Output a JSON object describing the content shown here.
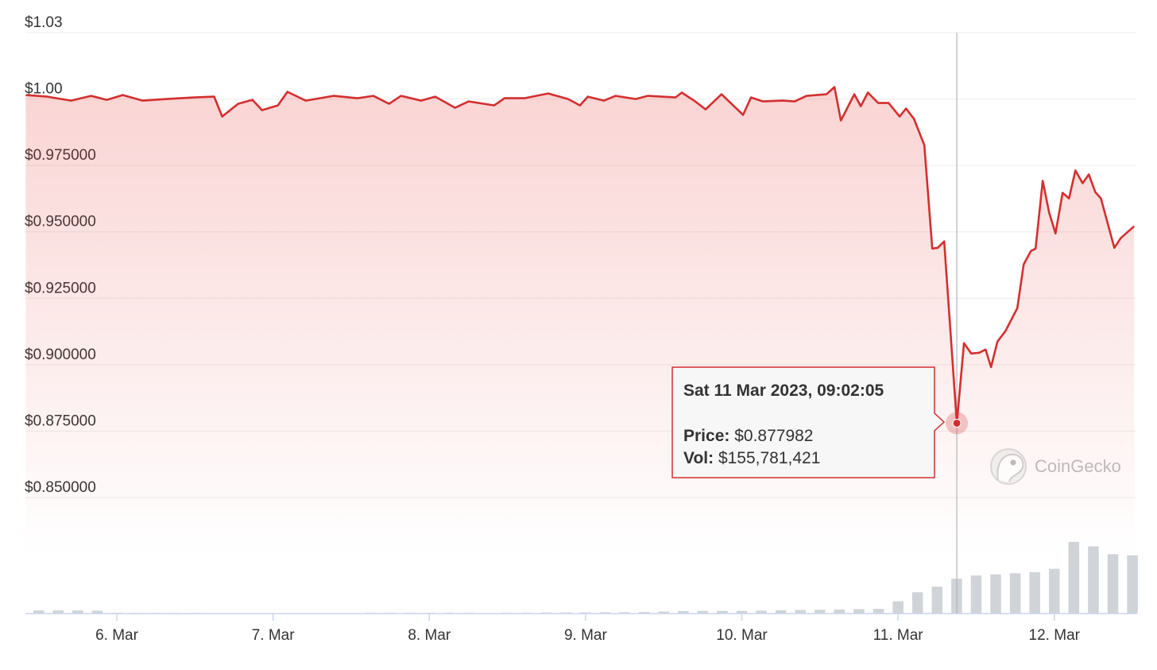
{
  "chart_data": {
    "type": "line",
    "x": [
      5.417,
      5.555,
      5.707,
      5.835,
      5.936,
      6.038,
      6.165,
      6.318,
      6.496,
      6.623,
      6.674,
      6.776,
      6.868,
      6.929,
      7.031,
      7.092,
      7.209,
      7.387,
      7.539,
      7.641,
      7.743,
      7.819,
      7.947,
      8.038,
      8.165,
      8.252,
      8.415,
      8.481,
      8.608,
      8.761,
      8.888,
      8.964,
      9.015,
      9.117,
      9.193,
      9.321,
      9.397,
      9.575,
      9.616,
      9.702,
      9.768,
      9.87,
      10.008,
      10.059,
      10.135,
      10.262,
      10.338,
      10.415,
      10.542,
      10.593,
      10.634,
      10.72,
      10.761,
      10.807,
      10.873,
      10.939,
      11.01,
      11.051,
      11.102,
      11.168,
      11.219,
      11.254,
      11.295,
      11.376,
      11.422,
      11.468,
      11.519,
      11.56,
      11.595,
      11.636,
      11.687,
      11.763,
      11.804,
      11.85,
      11.88,
      11.926,
      11.967,
      12.008,
      12.053,
      12.094,
      12.135,
      12.181,
      12.221,
      12.262,
      12.298,
      12.384,
      12.425,
      12.511
    ],
    "price": {
      "color": "#d32f2f",
      "values": [
        1.0015,
        1.0009,
        0.9994,
        1.0012,
        0.9997,
        1.0015,
        0.9994,
        1.0,
        1.0006,
        1.0009,
        0.9934,
        0.9982,
        0.9997,
        0.9958,
        0.9976,
        1.0027,
        0.9994,
        1.0012,
        1.0003,
        1.0012,
        0.9982,
        1.0012,
        0.9994,
        1.0009,
        0.9967,
        0.9991,
        0.9976,
        1.0003,
        1.0003,
        1.0021,
        1.0,
        0.9976,
        1.0009,
        0.9994,
        1.0012,
        1.0,
        1.0012,
        1.0006,
        1.0024,
        0.9991,
        0.9961,
        1.0018,
        0.994,
        1.0006,
        0.9991,
        0.9994,
        0.9991,
        1.0012,
        1.0018,
        1.0045,
        0.9919,
        1.0018,
        0.9973,
        1.0024,
        0.9985,
        0.9985,
        0.9934,
        0.9964,
        0.9925,
        0.9826,
        0.9437,
        0.944,
        0.9464,
        0.877982,
        0.9081,
        0.9042,
        0.9045,
        0.9057,
        0.8991,
        0.9087,
        0.9126,
        0.9213,
        0.9377,
        0.9428,
        0.9437,
        0.9692,
        0.9572,
        0.9494,
        0.9647,
        0.9626,
        0.9731,
        0.9683,
        0.9716,
        0.965,
        0.9626,
        0.944,
        0.9476,
        0.9521
      ]
    },
    "volume": {
      "type": "bar",
      "color": "#d0d3d8",
      "ylim": [
        0,
        330000000
      ],
      "x": [
        5.5,
        5.625,
        5.75,
        5.875,
        6,
        6.125,
        6.25,
        6.375,
        6.5,
        6.625,
        6.75,
        6.875,
        7,
        7.125,
        7.25,
        7.375,
        7.5,
        7.625,
        7.75,
        7.875,
        8,
        8.125,
        8.25,
        8.375,
        8.5,
        8.625,
        8.75,
        8.875,
        9,
        9.125,
        9.25,
        9.375,
        9.5,
        9.625,
        9.75,
        9.875,
        10,
        10.125,
        10.25,
        10.375,
        10.5,
        10.625,
        10.75,
        10.875,
        11,
        11.125,
        11.25,
        11.375,
        11.5,
        11.625,
        11.75,
        11.875,
        12,
        12.125,
        12.25,
        12.375,
        12.5
      ],
      "values": [
        14000000,
        14000000,
        14000000,
        13000000,
        4000000,
        3000000,
        3000000,
        3000000,
        3000000,
        500000,
        500000,
        500000,
        500000,
        500000,
        500000,
        500000,
        500000,
        4000000,
        4000000,
        4000000,
        4000000,
        4000000,
        4000000,
        1000000,
        4000000,
        4000000,
        5000000,
        5000000,
        5000000,
        6000000,
        6000000,
        7000000,
        9000000,
        11000000,
        12000000,
        12000000,
        12000000,
        13000000,
        15000000,
        16000000,
        17000000,
        18000000,
        20000000,
        21000000,
        55000000,
        95000000,
        120000000,
        155781421,
        170000000,
        175000000,
        180000000,
        185000000,
        200000000,
        320000000,
        300000000,
        265000000,
        260000000
      ]
    },
    "ylim": [
      0.85,
      1.025
    ],
    "yticks": [
      {
        "value": 1.025,
        "label": "$1.03"
      },
      {
        "value": 1.0,
        "label": "$1.00"
      },
      {
        "value": 0.975,
        "label": "$0.975000"
      },
      {
        "value": 0.95,
        "label": "$0.950000"
      },
      {
        "value": 0.925,
        "label": "$0.925000"
      },
      {
        "value": 0.9,
        "label": "$0.900000"
      },
      {
        "value": 0.875,
        "label": "$0.875000"
      },
      {
        "value": 0.85,
        "label": "$0.850000"
      }
    ],
    "xlim": [
      5.415,
      12.525
    ],
    "xticks": [
      {
        "value": 6,
        "label": "6. Mar"
      },
      {
        "value": 7,
        "label": "7. Mar"
      },
      {
        "value": 8,
        "label": "8. Mar"
      },
      {
        "value": 9,
        "label": "9. Mar"
      },
      {
        "value": 10,
        "label": "10. Mar"
      },
      {
        "value": 11,
        "label": "11. Mar"
      },
      {
        "value": 12,
        "label": "12. Mar"
      }
    ],
    "grid": true,
    "tooltip": {
      "index": 63,
      "date": "Sat 11 Mar 2023, 09:02:05",
      "price_label": "Price:",
      "price": "$0.877982",
      "vol_label": "Vol:",
      "vol": "$155,781,421"
    },
    "watermark": "CoinGecko"
  }
}
